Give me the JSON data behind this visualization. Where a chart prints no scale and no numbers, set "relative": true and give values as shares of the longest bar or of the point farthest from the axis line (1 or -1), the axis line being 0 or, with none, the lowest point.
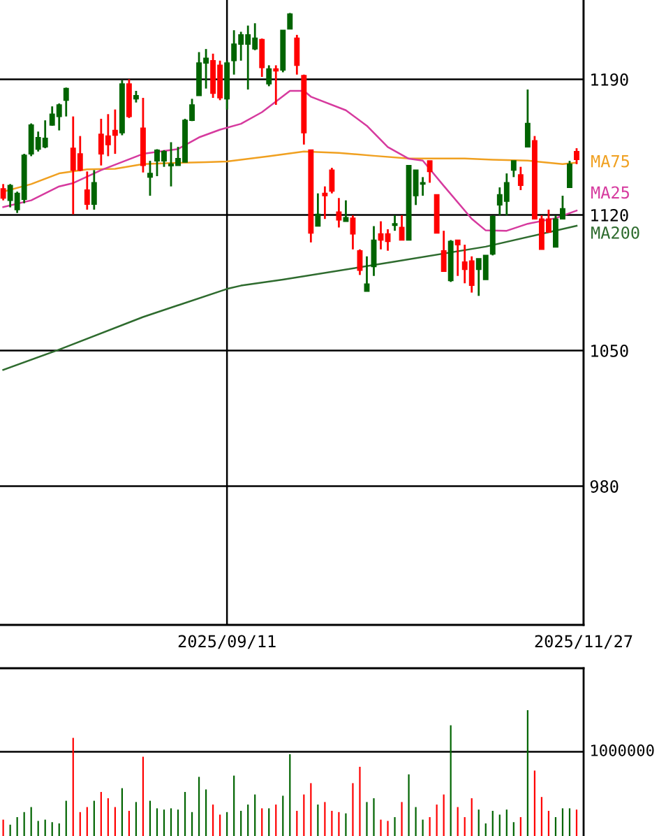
{
  "chart_data": [
    {
      "type": "candlestick",
      "categories": [
        null,
        null,
        null,
        null,
        null,
        null,
        null,
        null,
        null,
        null,
        null,
        null,
        null,
        null,
        null,
        null,
        null,
        null,
        null,
        null,
        null,
        null,
        null,
        null,
        null,
        null,
        null,
        null,
        null,
        null,
        null,
        null,
        "2025/09/11",
        null,
        null,
        null,
        null,
        null,
        null,
        null,
        null,
        null,
        null,
        null,
        null,
        null,
        null,
        null,
        null,
        null,
        null,
        null,
        null,
        null,
        null,
        null,
        null,
        null,
        null,
        null,
        null,
        null,
        null,
        null,
        null,
        null,
        null,
        null,
        null,
        null,
        null,
        null,
        null,
        null,
        null,
        null,
        null,
        null,
        null,
        null,
        null,
        null,
        null,
        "2025/11/27"
      ],
      "ohlc": [
        [
          1133.5,
          1135.9,
          1127.5,
          1128.7
        ],
        [
          1127.5,
          1135.9,
          1123.9,
          1135.2
        ],
        [
          1122.7,
          1132,
          1121,
          1131.1
        ],
        [
          1128,
          1151.5,
          1126,
          1150.8
        ],
        [
          1151.5,
          1167.2,
          1150.3,
          1166.4
        ],
        [
          1153.9,
          1163,
          1152.7,
          1159.9
        ],
        [
          1155.1,
          1168.8,
          1154.4,
          1159.5
        ],
        [
          1166.4,
          1176,
          1166,
          1172
        ],
        [
          1170.8,
          1177.5,
          1163.6,
          1176.8
        ],
        [
          1179.2,
          1185.7,
          1170.8,
          1185.2
        ],
        [
          1154.4,
          1170.8,
          1120.3,
          1143.1
        ],
        [
          1151.5,
          1160.7,
          1142.5,
          1143.1
        ],
        [
          1132.8,
          1142.4,
          1122.7,
          1125.5
        ],
        [
          1125.5,
          1143.1,
          1122.7,
          1136.6
        ],
        [
          1161.6,
          1169.6,
          1145.5,
          1151.5
        ],
        [
          1160.7,
          1172,
          1150.3,
          1156.3
        ],
        [
          1163.6,
          1174.4,
          1151.5,
          1161.1
        ],
        [
          1162.4,
          1189.5,
          1161.1,
          1187.6
        ],
        [
          1187.6,
          1190,
          1170,
          1170.8
        ],
        [
          1179.9,
          1184,
          1178,
          1181.5
        ],
        [
          1164.8,
          1180.4,
          1141.9,
          1145.5
        ],
        [
          1139.5,
          1147.9,
          1129.9,
          1141.4
        ],
        [
          1147.9,
          1153.9,
          1140,
          1153.4
        ],
        [
          1147.9,
          1153.4,
          1144.8,
          1152.7
        ],
        [
          1145.3,
          1157.5,
          1134.7,
          1146.3
        ],
        [
          1145.5,
          1155.1,
          1145.5,
          1149.1
        ],
        [
          1147.2,
          1169.6,
          1147.2,
          1168.8
        ],
        [
          1168.8,
          1179.9,
          1168.4,
          1176.8
        ],
        [
          1181.6,
          1204,
          1181.6,
          1198.4
        ],
        [
          1198.4,
          1205.6,
          1185.2,
          1200.8
        ],
        [
          1199.6,
          1203.2,
          1180.4,
          1182.8
        ],
        [
          1197.2,
          1199.6,
          1179.2,
          1180.4
        ],
        [
          1179.9,
          1199.6,
          1174.4,
          1198.4
        ],
        [
          1199.6,
          1215.3,
          1192.4,
          1208.1
        ],
        [
          1208.1,
          1214.5,
          1199.6,
          1212.9
        ],
        [
          1208.1,
          1217.7,
          1184.7,
          1212.9
        ],
        [
          1205.7,
          1218.9,
          1205,
          1211.2
        ],
        [
          1210.5,
          1211,
          1191.2,
          1196
        ],
        [
          1187.6,
          1197.2,
          1186.4,
          1195.3
        ],
        [
          1195.3,
          1197.2,
          1176.8,
          1194.3
        ],
        [
          1194.8,
          1215.3,
          1193.6,
          1215.3
        ],
        [
          1216,
          1224.2,
          1216,
          1223.7
        ],
        [
          1211.2,
          1212.9,
          1192.4,
          1197.2
        ],
        [
          1191.9,
          1192.4,
          1156.3,
          1162.4
        ],
        [
          1153.5,
          1153.5,
          1105.8,
          1110.6
        ],
        [
          1114.2,
          1131.1,
          1114.2,
          1120.3
        ],
        [
          1131.1,
          1134.7,
          1117.9,
          1129.9
        ],
        [
          1143.1,
          1144.3,
          1131.1,
          1132.3
        ],
        [
          1121.5,
          1128.7,
          1113.5,
          1117.4
        ],
        [
          1116.7,
          1127.5,
          1116.7,
          1118.6
        ],
        [
          1118.3,
          1119.8,
          1102.2,
          1110.2
        ],
        [
          1101.5,
          1102.2,
          1089,
          1091.4
        ],
        [
          1080.6,
          1098.6,
          1080.6,
          1084.3
        ],
        [
          1093.3,
          1114.2,
          1088.5,
          1107
        ],
        [
          1110.2,
          1116.7,
          1102.2,
          1107
        ],
        [
          1110.2,
          1112.6,
          1101.5,
          1106.3
        ],
        [
          1114.6,
          1119.8,
          1111.8,
          1115.4
        ],
        [
          1113.5,
          1119.8,
          1107,
          1107
        ],
        [
          1107,
          1145.5,
          1107,
          1145.5
        ],
        [
          1129.9,
          1143.1,
          1125.1,
          1143.1
        ],
        [
          1135.9,
          1139.5,
          1129.9,
          1136.6
        ],
        [
          1147.9,
          1147.9,
          1136.6,
          1142.4
        ],
        [
          1130.4,
          1130.4,
          1110.6,
          1110.6
        ],
        [
          1101.5,
          1111.8,
          1090.9,
          1090.9
        ],
        [
          1086.1,
          1107,
          1085.4,
          1106.3
        ],
        [
          1107,
          1107,
          1088.5,
          1104.6
        ],
        [
          1095.7,
          1104.6,
          1084.7,
          1091.9
        ],
        [
          1096.2,
          1098.6,
          1079.9,
          1083.7
        ],
        [
          1091.9,
          1097.4,
          1078.2,
          1097.4
        ],
        [
          1086.6,
          1099.1,
          1086.6,
          1099.1
        ],
        [
          1099.8,
          1119.8,
          1099.1,
          1119.1
        ],
        [
          1125.1,
          1134.2,
          1119.8,
          1130.4
        ],
        [
          1127,
          1141.4,
          1119.8,
          1136.6
        ],
        [
          1143.1,
          1147.9,
          1139.5,
          1147.9
        ],
        [
          1140.7,
          1144.8,
          1132.8,
          1135.2
        ],
        [
          1155.1,
          1184.7,
          1155.1,
          1167.2
        ],
        [
          1158.3,
          1160.7,
          1117.9,
          1117.9
        ],
        [
          1117.9,
          1119.8,
          1102.2,
          1102.2
        ],
        [
          1117.9,
          1122.7,
          1111.1,
          1111.1
        ],
        [
          1103.4,
          1119.8,
          1103.4,
          1117.9
        ],
        [
          1117.9,
          1129.9,
          1117.9,
          1123.2
        ],
        [
          1134.2,
          1147.9,
          1134.2,
          1146.2
        ],
        [
          1152.7,
          1154.4,
          1146.2,
          1148.6
        ],
        null
      ],
      "colors": [
        "#ff0000",
        "#006400",
        "#006400",
        "#006400",
        "#006400",
        "#006400",
        "#006400",
        "#006400",
        "#006400",
        "#006400",
        "#ff0000",
        "#ff0000",
        "#ff0000",
        "#006400",
        "#ff0000",
        "#ff0000",
        "#ff0000",
        "#006400",
        "#ff0000",
        "#006400",
        "#ff0000",
        "#006400",
        "#006400",
        "#006400",
        "#006400",
        "#006400",
        "#006400",
        "#006400",
        "#006400",
        "#006400",
        "#ff0000",
        "#ff0000",
        "#006400",
        "#006400",
        "#006400",
        "#006400",
        "#006400",
        "#ff0000",
        "#006400",
        "#ff0000",
        "#006400",
        "#006400",
        "#ff0000",
        "#ff0000",
        "#ff0000",
        "#006400",
        "#ff0000",
        "#ff0000",
        "#ff0000",
        "#006400",
        "#ff0000",
        "#ff0000",
        "#006400",
        "#006400",
        "#ff0000",
        "#ff0000",
        "#006400",
        "#ff0000",
        "#006400",
        "#006400",
        "#006400",
        "#ff0000",
        "#ff0000",
        "#ff0000",
        "#006400",
        "#ff0000",
        "#ff0000",
        "#ff0000",
        "#006400",
        "#006400",
        "#006400",
        "#006400",
        "#006400",
        "#006400",
        "#ff0000",
        "#006400",
        "#ff0000",
        "#ff0000",
        "#ff0000",
        "#006400",
        "#006400",
        "#006400",
        "#ff0000",
        null
      ],
      "series": [
        {
          "name": "MA75",
          "type": "line",
          "color": "#f0a020",
          "values": [
            1132,
            null,
            null,
            null,
            1135.9,
            null,
            null,
            null,
            1141.4,
            null,
            null,
            null,
            1143.5,
            null,
            null,
            null,
            1143.8,
            null,
            null,
            null,
            1146.2,
            null,
            null,
            null,
            1146.8,
            null,
            null,
            null,
            null,
            1147.2,
            null,
            null,
            1147.6,
            null,
            null,
            null,
            null,
            null,
            1150.3,
            null,
            null,
            null,
            null,
            1152.7,
            null,
            null,
            null,
            null,
            1152,
            null,
            null,
            null,
            null,
            1150.5,
            null,
            null,
            null,
            null,
            1149.1,
            null,
            null,
            null,
            1149.1,
            null,
            null,
            null,
            1149.1,
            null,
            null,
            null,
            1148.5,
            null,
            null,
            null,
            null,
            1148,
            null,
            null,
            null,
            null,
            1146.2,
            null,
            1147,
            null
          ]
        },
        {
          "name": "MA25",
          "type": "line",
          "color": "#d63a9e",
          "values": [
            1124,
            null,
            null,
            null,
            1127.5,
            null,
            null,
            null,
            1134.7,
            null,
            1136.4,
            null,
            null,
            null,
            1143.1,
            null,
            null,
            null,
            null,
            null,
            1151.5,
            null,
            null,
            null,
            null,
            1154,
            null,
            null,
            1160,
            null,
            null,
            1164,
            null,
            null,
            1167,
            null,
            null,
            1173,
            null,
            null,
            null,
            1184,
            null,
            1184,
            1181,
            null,
            null,
            null,
            null,
            1174,
            null,
            null,
            1166,
            null,
            null,
            1155,
            null,
            null,
            1149,
            null,
            1148,
            null,
            null,
            1135,
            null,
            null,
            null,
            1118,
            null,
            1112,
            null,
            null,
            1111.8,
            null,
            null,
            1115.4,
            null,
            null,
            null,
            1118.3,
            null,
            null,
            1122.2,
            null
          ]
        },
        {
          "name": "MA200",
          "type": "line",
          "color": "#2e6b2e",
          "values": [
            1040,
            null,
            null,
            null,
            null,
            null,
            null,
            null,
            1050.5,
            null,
            null,
            null,
            null,
            null,
            null,
            null,
            null,
            null,
            null,
            null,
            1067.3,
            null,
            null,
            null,
            null,
            null,
            null,
            null,
            null,
            null,
            null,
            null,
            1081.8,
            null,
            1083.5,
            null,
            null,
            null,
            null,
            null,
            1086.6,
            null,
            null,
            null,
            null,
            null,
            null,
            null,
            null,
            null,
            null,
            null,
            null,
            null,
            null,
            null,
            1095.9,
            null,
            null,
            null,
            null,
            null,
            null,
            null,
            null,
            null,
            null,
            null,
            null,
            1103.6,
            null,
            null,
            null,
            null,
            null,
            null,
            null,
            null,
            null,
            null,
            null,
            null,
            1114.4,
            null
          ]
        }
      ],
      "ylim": [
        908.4,
        1230.9
      ],
      "yticks": [
        980,
        1050,
        1120,
        1190
      ],
      "grid": true
    },
    {
      "type": "bar",
      "relative": true,
      "categories": [
        null,
        null,
        null,
        null,
        null,
        null,
        null,
        null,
        null,
        null,
        null,
        null,
        null,
        null,
        null,
        null,
        null,
        null,
        null,
        null,
        null,
        null,
        null,
        null,
        null,
        null,
        null,
        null,
        null,
        null,
        null,
        null,
        null,
        null,
        null,
        null,
        null,
        null,
        null,
        null,
        null,
        null,
        null,
        null,
        null,
        null,
        null,
        null,
        null,
        null,
        null,
        null,
        null,
        null,
        null,
        null,
        null,
        null,
        null,
        null,
        null,
        null,
        null,
        null,
        null,
        null,
        null,
        null,
        null,
        null,
        null,
        null,
        null,
        null,
        null,
        null,
        null,
        null,
        null,
        null,
        null,
        null,
        null,
        null
      ],
      "values": [
        0.13,
        0.09,
        0.15,
        0.19,
        0.23,
        0.12,
        0.13,
        0.11,
        0.1,
        0.28,
        0.78,
        0.19,
        0.23,
        0.28,
        0.35,
        0.3,
        0.23,
        0.38,
        0.2,
        0.27,
        0.63,
        0.28,
        0.22,
        0.21,
        0.22,
        0.21,
        0.35,
        0.19,
        0.47,
        0.37,
        0.25,
        0.17,
        0.19,
        0.48,
        0.2,
        0.25,
        0.33,
        0.22,
        0.22,
        0.25,
        0.32,
        0.65,
        0.2,
        0.33,
        0.42,
        0.25,
        0.27,
        0.2,
        0.19,
        0.18,
        0.42,
        0.55,
        0.27,
        0.3,
        0.13,
        0.12,
        0.15,
        0.27,
        0.49,
        0.23,
        0.13,
        0.15,
        0.25,
        0.33,
        0.88,
        0.23,
        0.15,
        0.3,
        0.21,
        0.1,
        0.2,
        0.17,
        0.21,
        0.11,
        0.15,
        1,
        0.52,
        0.31,
        0.2,
        0.15,
        0.22,
        0.22,
        0.21,
        null
      ],
      "colors": [
        "#ff0000",
        "#006400",
        "#006400",
        "#006400",
        "#006400",
        "#006400",
        "#006400",
        "#006400",
        "#006400",
        "#006400",
        "#ff0000",
        "#ff0000",
        "#ff0000",
        "#006400",
        "#ff0000",
        "#ff0000",
        "#ff0000",
        "#006400",
        "#ff0000",
        "#006400",
        "#ff0000",
        "#006400",
        "#006400",
        "#006400",
        "#006400",
        "#006400",
        "#006400",
        "#006400",
        "#006400",
        "#006400",
        "#ff0000",
        "#ff0000",
        "#006400",
        "#006400",
        "#006400",
        "#006400",
        "#006400",
        "#ff0000",
        "#006400",
        "#ff0000",
        "#006400",
        "#006400",
        "#ff0000",
        "#ff0000",
        "#ff0000",
        "#006400",
        "#ff0000",
        "#ff0000",
        "#ff0000",
        "#006400",
        "#ff0000",
        "#ff0000",
        "#006400",
        "#006400",
        "#ff0000",
        "#ff0000",
        "#006400",
        "#ff0000",
        "#006400",
        "#006400",
        "#006400",
        "#ff0000",
        "#ff0000",
        "#ff0000",
        "#006400",
        "#ff0000",
        "#ff0000",
        "#ff0000",
        "#006400",
        "#006400",
        "#006400",
        "#006400",
        "#006400",
        "#006400",
        "#ff0000",
        "#006400",
        "#ff0000",
        "#ff0000",
        "#ff0000",
        "#006400",
        "#006400",
        "#006400",
        "#ff0000",
        null
      ],
      "ref_lines": [
        {
          "axis": "y",
          "value": 0.67,
          "color": "#000000"
        }
      ],
      "annotations": [
        "1000000"
      ]
    }
  ]
}
